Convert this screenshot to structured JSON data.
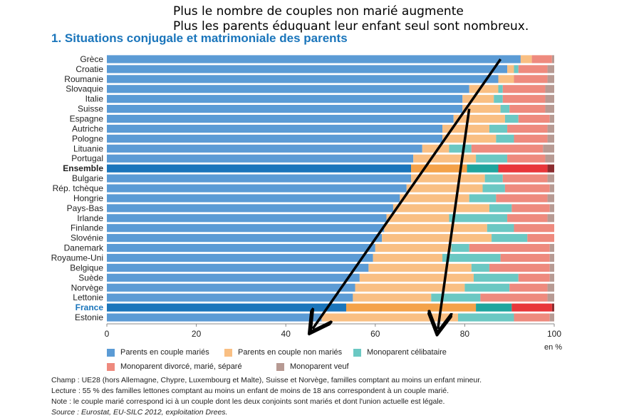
{
  "annotations": {
    "line1": "Plus le nombre de couples non marié augmente",
    "line2": "Plus les parents éduquant leur enfant seul sont nombreux."
  },
  "chart_data": {
    "type": "bar",
    "orientation": "horizontal",
    "stacked": true,
    "title": "1. Situations conjugale et matrimoniale des parents",
    "categories": [
      "Grèce",
      "Croatie",
      "Roumanie",
      "Slovaquie",
      "Italie",
      "Suisse",
      "Espagne",
      "Autriche",
      "Pologne",
      "Lituanie",
      "Portugal",
      "Ensemble",
      "Bulgarie",
      "Rép. tchèque",
      "Hongrie",
      "Pays-Bas",
      "Irlande",
      "Finlande",
      "Slovénie",
      "Danemark",
      "Royaume-Uni",
      "Belgique",
      "Suède",
      "Norvège",
      "Lettonie",
      "France",
      "Estonie"
    ],
    "highlight": {
      "Ensemble": "bold",
      "France": "blue"
    },
    "series": [
      {
        "name": "Parents en couple mariés",
        "color": "#5b9bd5",
        "highlight_color": "#1a75bb",
        "values": [
          92.5,
          89.5,
          87.5,
          81,
          79.5,
          79.5,
          77.5,
          75,
          75,
          70.5,
          68.5,
          68,
          68,
          67,
          65.5,
          64,
          62.5,
          62,
          61.5,
          60,
          59.5,
          58.5,
          56.5,
          55.5,
          55,
          53.5,
          48
        ]
      },
      {
        "name": "Parents en couple non mariés",
        "color": "#f9bf83",
        "highlight_color": "#f4a24a",
        "values": [
          2.5,
          1.5,
          3.5,
          6.5,
          7,
          8.5,
          11.5,
          10.5,
          12,
          6,
          14,
          12.5,
          16.5,
          17,
          15.5,
          21.5,
          14,
          23,
          24.5,
          17,
          15.5,
          23,
          25.5,
          24.5,
          17.5,
          29,
          30.5
        ]
      },
      {
        "name": "Monoparent célibataire",
        "color": "#6bc8c3",
        "highlight_color": "#1fa59e",
        "values": [
          0,
          1,
          0,
          1,
          2,
          2,
          3,
          4,
          4,
          5,
          7,
          7,
          4,
          5,
          6,
          5,
          13,
          6,
          8,
          4,
          13,
          4,
          10,
          10,
          11,
          8,
          12.5
        ]
      },
      {
        "name": "Monoparent divorcé, marié, séparé",
        "color": "#ee8a7e",
        "highlight_color": "#e8363a",
        "values": [
          4.5,
          6.5,
          7.5,
          9.5,
          9.5,
          8,
          7,
          9,
          7.5,
          16,
          8.5,
          11,
          10,
          10,
          11.5,
          8.5,
          9,
          9,
          6,
          18,
          11,
          13.5,
          7,
          8.5,
          15,
          9,
          8
        ]
      },
      {
        "name": "Monoparent veuf",
        "color": "#b79a93",
        "highlight_color": "#8b2d2f",
        "values": [
          0.5,
          1.5,
          1.5,
          2,
          2,
          2,
          1,
          1.5,
          1.5,
          2.5,
          2,
          1.5,
          1.5,
          1,
          1.5,
          1,
          1.5,
          0,
          0,
          1,
          1,
          1,
          1,
          1.5,
          1.5,
          0.5,
          1
        ]
      }
    ],
    "xlim": [
      0,
      100
    ],
    "xticks": [
      "0",
      "20",
      "40",
      "60",
      "80",
      "100"
    ],
    "xunit": "en %",
    "grid": false,
    "legend_position": "bottom"
  },
  "arrows": [
    {
      "from": [
        88,
        "Grèce"
      ],
      "to": [
        46,
        "Estonie"
      ]
    },
    {
      "from": [
        81,
        "Suisse"
      ],
      "to": [
        74,
        "Estonie"
      ]
    }
  ],
  "notes": {
    "champ": "Champ : UE28 (hors Allemagne, Chypre, Luxembourg et Malte), Suisse et Norvège, familles comptant au moins un enfant mineur.",
    "lecture": "Lecture : 55 % des familles lettones comptant au moins un enfant de moins de 18 ans correspondent à un couple marié.",
    "note": "Note : le couple marié correspond ici à un couple dont les deux conjoints sont mariés et dont l'union actuelle est légale.",
    "source": "Source : Eurostat, EU-SILC 2012, exploitation Drees."
  }
}
